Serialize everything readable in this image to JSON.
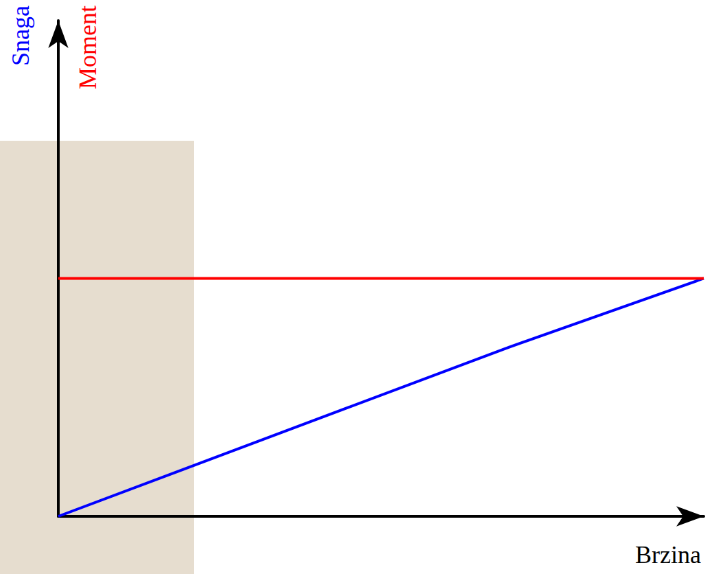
{
  "chart_data": {
    "type": "line",
    "x_label": "Brzina",
    "x": [
      0,
      45,
      70,
      100
    ],
    "xlim": [
      0,
      100
    ],
    "ylim": [
      0,
      100
    ],
    "series": [
      {
        "name": "Snaga",
        "color": "#0000ff",
        "values": [
          0,
          22,
          34.2,
          48
        ]
      },
      {
        "name": "Moment",
        "color": "#ff0000",
        "values": [
          48,
          48,
          48,
          48
        ]
      }
    ],
    "tick_labels": false,
    "grid": false
  }
}
